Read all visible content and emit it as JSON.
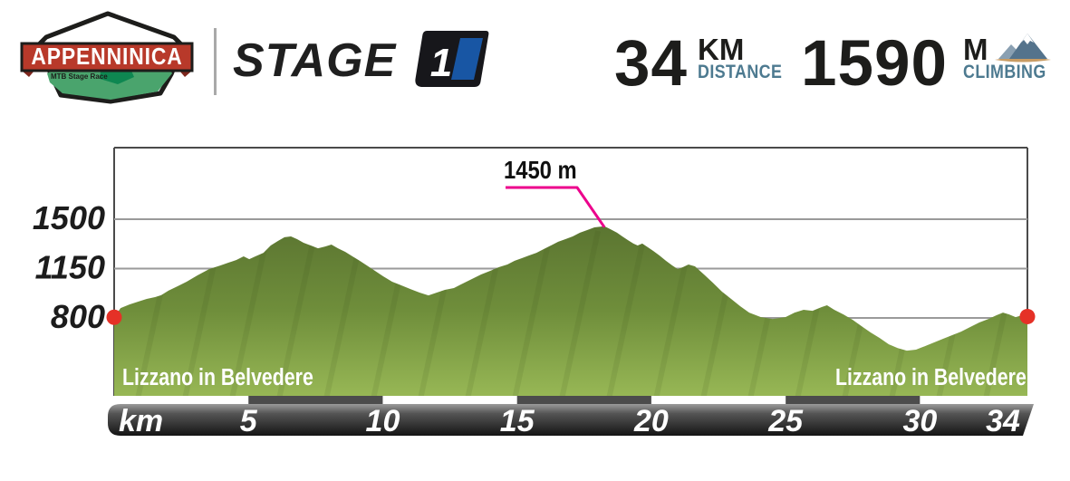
{
  "header": {
    "logo": {
      "title": "APPENNINICA",
      "subtitle": "MTB Stage Race"
    },
    "stage": {
      "label": "STAGE",
      "number": "1"
    },
    "stats": {
      "distance": {
        "value": "34",
        "unit": "KM",
        "label": "DISTANCE"
      },
      "climbing": {
        "value": "1590",
        "unit": "M",
        "label": "CLIMBING"
      }
    }
  },
  "chart": {
    "axis_unit": "km",
    "start_point_label": "Lizzano in Belvedere",
    "end_point_label": "Lizzano in Belvedere"
  },
  "colors": {
    "profile_green_top": "#5b7531",
    "profile_green_mid": "#6f8e3b",
    "profile_green_bottom": "#97b755",
    "accent_red": "#e53127",
    "annotation_magenta": "#ec008c",
    "stat_label_teal": "#4d7a90",
    "stage_badge_blue": "#1856a4",
    "logo_banner_red": "#b8392a",
    "logo_green": "#4aa46d",
    "logo_green_dark": "#0e8751",
    "axis_segment_dark": "#4c4c4c",
    "axis_segment_light": "#ffffff"
  },
  "chart_data": {
    "type": "area",
    "xlabel": "km",
    "xlim": [
      0,
      34
    ],
    "ylim_drawn": [
      550,
      1600
    ],
    "x_ticks": [
      5,
      10,
      15,
      20,
      25,
      30,
      34
    ],
    "y_ticks": [
      1500,
      1150,
      800
    ],
    "grid": true,
    "peak_annotation": {
      "text": "1450 m",
      "km": 18.25,
      "elevation": 1450
    },
    "start_marker": {
      "km": 0,
      "elevation": 805
    },
    "end_marker": {
      "km": 34,
      "elevation": 810
    },
    "profile": [
      [
        0,
        805
      ],
      [
        0.24,
        870
      ],
      [
        0.57,
        896
      ],
      [
        0.88,
        915
      ],
      [
        1.21,
        935
      ],
      [
        1.52,
        948
      ],
      [
        1.75,
        961
      ],
      [
        2.02,
        993
      ],
      [
        2.36,
        1025
      ],
      [
        2.7,
        1057
      ],
      [
        3.1,
        1102
      ],
      [
        3.54,
        1147
      ],
      [
        3.95,
        1172
      ],
      [
        4.25,
        1192
      ],
      [
        4.55,
        1211
      ],
      [
        4.82,
        1237
      ],
      [
        5.03,
        1217
      ],
      [
        5.26,
        1237
      ],
      [
        5.56,
        1262
      ],
      [
        5.83,
        1314
      ],
      [
        6.1,
        1346
      ],
      [
        6.34,
        1372
      ],
      [
        6.58,
        1378
      ],
      [
        6.81,
        1359
      ],
      [
        7.05,
        1333
      ],
      [
        7.32,
        1314
      ],
      [
        7.59,
        1294
      ],
      [
        7.86,
        1307
      ],
      [
        8.09,
        1320
      ],
      [
        8.33,
        1294
      ],
      [
        8.6,
        1269
      ],
      [
        8.87,
        1237
      ],
      [
        9.14,
        1205
      ],
      [
        9.41,
        1172
      ],
      [
        9.71,
        1134
      ],
      [
        10.02,
        1095
      ],
      [
        10.35,
        1057
      ],
      [
        10.69,
        1031
      ],
      [
        11.03,
        1005
      ],
      [
        11.37,
        980
      ],
      [
        11.7,
        960
      ],
      [
        12.01,
        980
      ],
      [
        12.31,
        999
      ],
      [
        12.65,
        1012
      ],
      [
        12.98,
        1044
      ],
      [
        13.32,
        1076
      ],
      [
        13.66,
        1108
      ],
      [
        14,
        1134
      ],
      [
        14.33,
        1160
      ],
      [
        14.64,
        1179
      ],
      [
        14.91,
        1205
      ],
      [
        15.18,
        1224
      ],
      [
        15.45,
        1243
      ],
      [
        15.72,
        1262
      ],
      [
        15.99,
        1288
      ],
      [
        16.26,
        1314
      ],
      [
        16.53,
        1340
      ],
      [
        16.8,
        1359
      ],
      [
        17.07,
        1378
      ],
      [
        17.34,
        1404
      ],
      [
        17.61,
        1423
      ],
      [
        17.88,
        1442
      ],
      [
        18.25,
        1450
      ],
      [
        18.48,
        1429
      ],
      [
        18.72,
        1404
      ],
      [
        18.92,
        1378
      ],
      [
        19.12,
        1352
      ],
      [
        19.33,
        1327
      ],
      [
        19.49,
        1314
      ],
      [
        19.66,
        1327
      ],
      [
        19.87,
        1301
      ],
      [
        20.07,
        1275
      ],
      [
        20.3,
        1243
      ],
      [
        20.54,
        1205
      ],
      [
        20.78,
        1172
      ],
      [
        20.98,
        1147
      ],
      [
        21.18,
        1160
      ],
      [
        21.38,
        1179
      ],
      [
        21.62,
        1166
      ],
      [
        21.96,
        1108
      ],
      [
        22.29,
        1050
      ],
      [
        22.63,
        986
      ],
      [
        22.97,
        935
      ],
      [
        23.31,
        883
      ],
      [
        23.64,
        838
      ],
      [
        24.08,
        806
      ],
      [
        24.52,
        793
      ],
      [
        24.99,
        806
      ],
      [
        25.33,
        838
      ],
      [
        25.67,
        858
      ],
      [
        26,
        851
      ],
      [
        26.34,
        877
      ],
      [
        26.54,
        890
      ],
      [
        26.81,
        858
      ],
      [
        27.15,
        825
      ],
      [
        27.49,
        787
      ],
      [
        27.82,
        742
      ],
      [
        28.16,
        697
      ],
      [
        28.5,
        658
      ],
      [
        28.84,
        613
      ],
      [
        29.17,
        587
      ],
      [
        29.51,
        568
      ],
      [
        29.85,
        575
      ],
      [
        30.19,
        600
      ],
      [
        30.52,
        626
      ],
      [
        30.86,
        652
      ],
      [
        31.2,
        678
      ],
      [
        31.53,
        703
      ],
      [
        31.87,
        736
      ],
      [
        32.21,
        768
      ],
      [
        32.55,
        793
      ],
      [
        32.85,
        819
      ],
      [
        33.09,
        838
      ],
      [
        33.32,
        825
      ],
      [
        33.56,
        806
      ],
      [
        33.8,
        819
      ],
      [
        34,
        810
      ]
    ]
  }
}
